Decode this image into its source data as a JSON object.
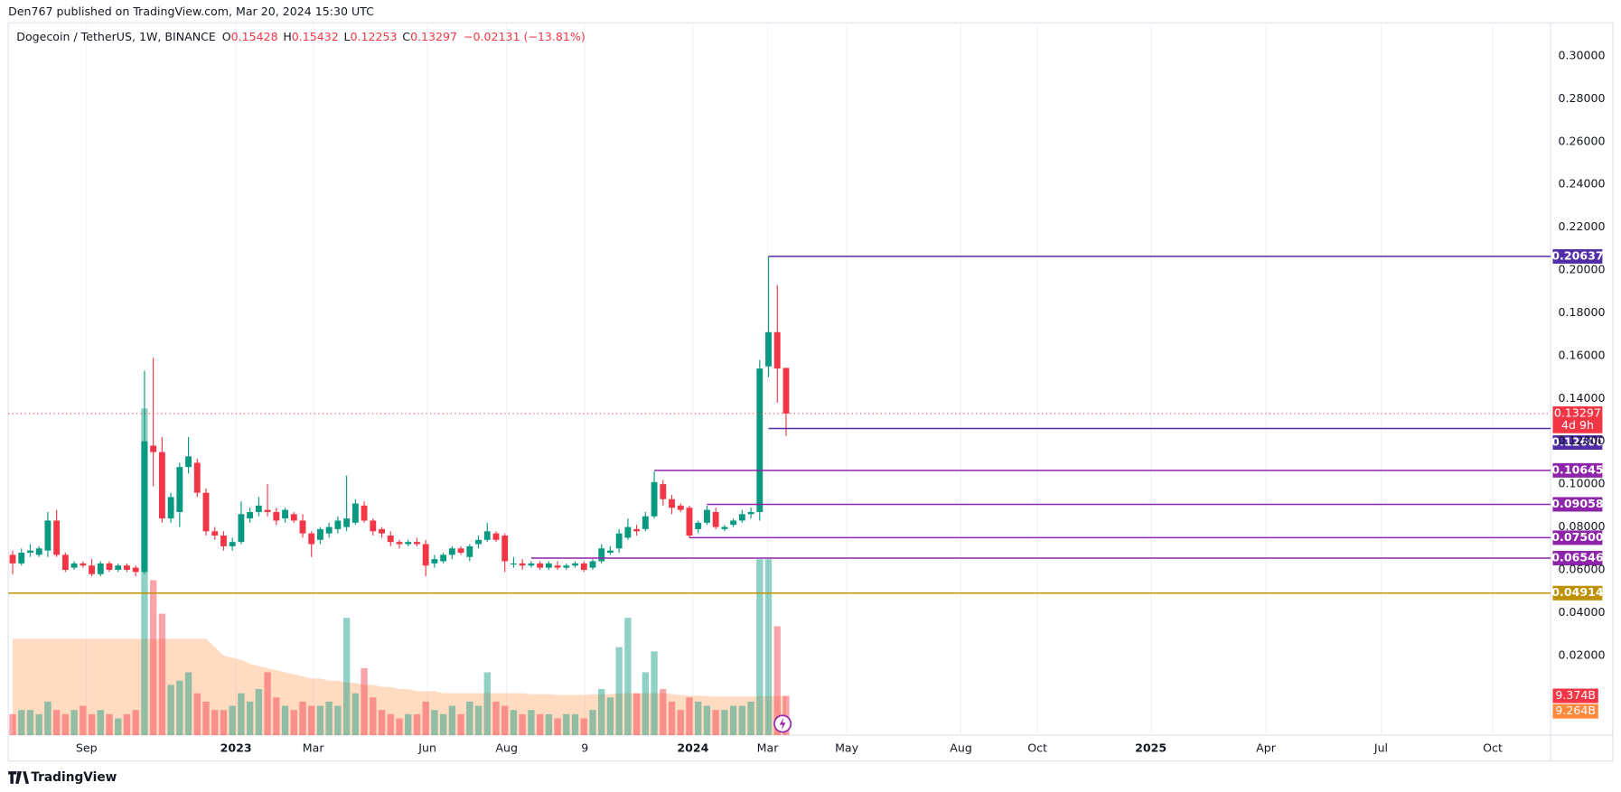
{
  "header": {
    "publisher": "Den767 published on TradingView.com, Mar 20, 2024 15:30 UTC",
    "footer": "TradingView"
  },
  "chart_data": {
    "type": "candlestick",
    "symbol": "Dogecoin / TetherUS, 1W, BINANCE",
    "ohlc_labels": [
      "O",
      "H",
      "L",
      "C"
    ],
    "change_label": "−0.02131 (−13.81%)",
    "countdown": "4d 9h",
    "up_color": "#089981",
    "down_color": "#f23645",
    "grid": true,
    "open": [
      0.067,
      0.063,
      0.068,
      0.067,
      0.069,
      0.083,
      0.067,
      0.061,
      0.063,
      0.062,
      0.058,
      0.063,
      0.06,
      0.062,
      0.061,
      0.059,
      0.118,
      0.115,
      0.084,
      0.087,
      0.108,
      0.11,
      0.096,
      0.078,
      0.076,
      0.071,
      0.073,
      0.084,
      0.087,
      0.088,
      0.087,
      0.084,
      0.086,
      0.083,
      0.077,
      0.074,
      0.077,
      0.079,
      0.08,
      0.082,
      0.09,
      0.083,
      0.079,
      0.076,
      0.073,
      0.072,
      0.073,
      0.072,
      0.063,
      0.064,
      0.067,
      0.07,
      0.066,
      0.072,
      0.074,
      0.077,
      0.076,
      0.063,
      0.063,
      0.062,
      0.063,
      0.061,
      0.062,
      0.061,
      0.062,
      0.063,
      0.061,
      0.064,
      0.068,
      0.07,
      0.075,
      0.079,
      0.079,
      0.085,
      0.1,
      0.093,
      0.09,
      0.089,
      0.079,
      0.082,
      0.087,
      0.079,
      0.081,
      0.083,
      0.086,
      0.087,
      0.155,
      0.171,
      0.15428
    ],
    "high": [
      0.069,
      0.07,
      0.072,
      0.071,
      0.087,
      0.088,
      0.068,
      0.064,
      0.064,
      0.065,
      0.064,
      0.064,
      0.063,
      0.063,
      0.062,
      0.153,
      0.159,
      0.122,
      0.096,
      0.11,
      0.122,
      0.112,
      0.098,
      0.08,
      0.078,
      0.075,
      0.092,
      0.089,
      0.094,
      0.1,
      0.089,
      0.089,
      0.087,
      0.086,
      0.078,
      0.08,
      0.082,
      0.085,
      0.104,
      0.093,
      0.092,
      0.084,
      0.08,
      0.078,
      0.074,
      0.074,
      0.075,
      0.074,
      0.067,
      0.068,
      0.071,
      0.071,
      0.072,
      0.076,
      0.082,
      0.078,
      0.077,
      0.066,
      0.065,
      0.064,
      0.064,
      0.064,
      0.064,
      0.063,
      0.064,
      0.064,
      0.065,
      0.072,
      0.071,
      0.079,
      0.084,
      0.081,
      0.087,
      0.106,
      0.102,
      0.095,
      0.091,
      0.09,
      0.083,
      0.09,
      0.089,
      0.081,
      0.084,
      0.088,
      0.089,
      0.158,
      0.20637,
      0.193,
      0.15432
    ],
    "low": [
      0.058,
      0.062,
      0.066,
      0.066,
      0.066,
      0.066,
      0.059,
      0.06,
      0.061,
      0.057,
      0.057,
      0.059,
      0.059,
      0.059,
      0.057,
      0.058,
      0.099,
      0.082,
      0.082,
      0.08,
      0.105,
      0.094,
      0.076,
      0.074,
      0.069,
      0.069,
      0.072,
      0.082,
      0.085,
      0.085,
      0.081,
      0.082,
      0.082,
      0.075,
      0.066,
      0.072,
      0.075,
      0.077,
      0.078,
      0.081,
      0.082,
      0.076,
      0.075,
      0.071,
      0.07,
      0.071,
      0.071,
      0.057,
      0.061,
      0.063,
      0.065,
      0.067,
      0.064,
      0.07,
      0.073,
      0.073,
      0.059,
      0.061,
      0.06,
      0.061,
      0.06,
      0.06,
      0.06,
      0.06,
      0.061,
      0.059,
      0.06,
      0.063,
      0.067,
      0.068,
      0.074,
      0.076,
      0.078,
      0.084,
      0.09,
      0.086,
      0.087,
      0.075,
      0.077,
      0.081,
      0.079,
      0.078,
      0.08,
      0.082,
      0.084,
      0.083,
      0.15,
      0.138,
      0.12253
    ],
    "close": [
      0.063,
      0.068,
      0.069,
      0.07,
      0.083,
      0.067,
      0.06,
      0.063,
      0.062,
      0.058,
      0.063,
      0.06,
      0.062,
      0.06,
      0.059,
      0.12,
      0.115,
      0.084,
      0.094,
      0.108,
      0.113,
      0.096,
      0.078,
      0.076,
      0.071,
      0.073,
      0.086,
      0.087,
      0.09,
      0.087,
      0.083,
      0.088,
      0.083,
      0.077,
      0.072,
      0.079,
      0.08,
      0.083,
      0.084,
      0.091,
      0.083,
      0.078,
      0.077,
      0.073,
      0.072,
      0.073,
      0.072,
      0.062,
      0.065,
      0.067,
      0.07,
      0.068,
      0.071,
      0.074,
      0.078,
      0.074,
      0.064,
      0.063,
      0.062,
      0.063,
      0.061,
      0.063,
      0.061,
      0.062,
      0.063,
      0.06,
      0.064,
      0.07,
      0.069,
      0.077,
      0.08,
      0.078,
      0.085,
      0.101,
      0.093,
      0.089,
      0.088,
      0.076,
      0.082,
      0.088,
      0.08,
      0.08,
      0.083,
      0.086,
      0.087,
      0.154,
      0.171,
      0.154,
      0.13297
    ],
    "volume": {
      "values": [
        5,
        6,
        6,
        5,
        8,
        6,
        5,
        6,
        7,
        5,
        6,
        5,
        4,
        5,
        6,
        78,
        37,
        29,
        12,
        13,
        15,
        10,
        8,
        6,
        6,
        7,
        10,
        8,
        11,
        15,
        9,
        7,
        6,
        8,
        7,
        7,
        8,
        7,
        28,
        10,
        16,
        9,
        6,
        5,
        4,
        5,
        5,
        8,
        6,
        5,
        7,
        5,
        8,
        7,
        15,
        8,
        7,
        6,
        5,
        6,
        5,
        5,
        4,
        5,
        5,
        4,
        6,
        11,
        9,
        21,
        28,
        10,
        15,
        20,
        11,
        8,
        6,
        9,
        8,
        7,
        6,
        6,
        7,
        7,
        8,
        42,
        42,
        26,
        9.374
      ],
      "last_label": "9.374B"
    },
    "volume_ma": {
      "values": [
        23,
        23,
        23,
        23,
        23,
        23,
        23,
        23,
        23,
        23,
        23,
        23,
        23,
        23,
        23,
        23,
        23,
        23,
        23,
        23,
        23,
        23,
        23,
        21,
        19,
        18.5,
        18,
        17,
        16.5,
        16,
        15.5,
        15,
        14.5,
        14,
        13.5,
        13.5,
        13,
        13,
        12.5,
        12.5,
        12,
        12,
        11.5,
        11.5,
        11,
        11,
        10.5,
        10.5,
        10.5,
        10,
        10,
        10,
        10,
        10,
        10,
        10,
        10,
        10,
        10,
        9.8,
        9.8,
        9.8,
        9.6,
        9.6,
        9.6,
        9.6,
        9.8,
        9.8,
        9.8,
        10,
        10,
        10,
        10,
        10,
        10,
        9.8,
        9.6,
        9.4,
        9.4,
        9.3,
        9.2,
        9.2,
        9.2,
        9.2,
        9.2,
        9.3,
        9.3,
        9.3,
        9.264
      ],
      "last_label": "9.264B"
    },
    "levels": [
      {
        "value": 0.20637,
        "start": 86,
        "color": "#512da8"
      },
      {
        "value": 0.126,
        "label": "0.12600",
        "start": 86,
        "color": "#512da8"
      },
      {
        "value": 0.10645,
        "start": 73,
        "color": "#8e24aa"
      },
      {
        "value": 0.09058,
        "start": 79,
        "color": "#8e24aa"
      },
      {
        "value": 0.075,
        "label": "0.07500",
        "start": 77,
        "color": "#8e24aa"
      },
      {
        "value": 0.06546,
        "start": 59,
        "color": "#8e24aa"
      },
      {
        "value": 0.04914,
        "start": -0.5,
        "color": "#bf9000"
      }
    ],
    "xlim": [
      -0.5,
      175
    ],
    "xticks": [
      {
        "value": 8.4,
        "label": "Sep"
      },
      {
        "value": 25.4,
        "label": "2023"
      },
      {
        "value": 34.2,
        "label": "Mar"
      },
      {
        "value": 47.2,
        "label": "Jun"
      },
      {
        "value": 56.2,
        "label": "Aug"
      },
      {
        "value": 65.1,
        "label": "9"
      },
      {
        "value": 77.4,
        "label": "2024"
      },
      {
        "value": 85.9,
        "label": "Mar"
      },
      {
        "value": 94.9,
        "label": "May"
      },
      {
        "value": 107.9,
        "label": "Aug"
      },
      {
        "value": 116.6,
        "label": "Oct"
      },
      {
        "value": 129.5,
        "label": "2025"
      },
      {
        "value": 142.6,
        "label": "Apr"
      },
      {
        "value": 155.7,
        "label": "Jul"
      },
      {
        "value": 168.4,
        "label": "Oct"
      }
    ],
    "ylim": [
      -0.0172,
      0.3068
    ],
    "yticks": [
      {
        "value": 0.02,
        "label": "0.02000"
      },
      {
        "value": 0.04,
        "label": "0.04000"
      },
      {
        "value": 0.06,
        "label": "0.06000"
      },
      {
        "value": 0.08,
        "label": "0.08000"
      },
      {
        "value": 0.1,
        "label": "0.10000"
      },
      {
        "value": 0.12,
        "label": "0.12000"
      },
      {
        "value": 0.14,
        "label": "0.14000"
      },
      {
        "value": 0.16,
        "label": "0.16000"
      },
      {
        "value": 0.18,
        "label": "0.18000"
      },
      {
        "value": 0.2,
        "label": "0.20000"
      },
      {
        "value": 0.22,
        "label": "0.22000"
      },
      {
        "value": 0.24,
        "label": "0.24000"
      },
      {
        "value": 0.26,
        "label": "0.26000"
      },
      {
        "value": 0.28,
        "label": "0.28000"
      },
      {
        "value": 0.3,
        "label": "0.30000"
      }
    ]
  }
}
